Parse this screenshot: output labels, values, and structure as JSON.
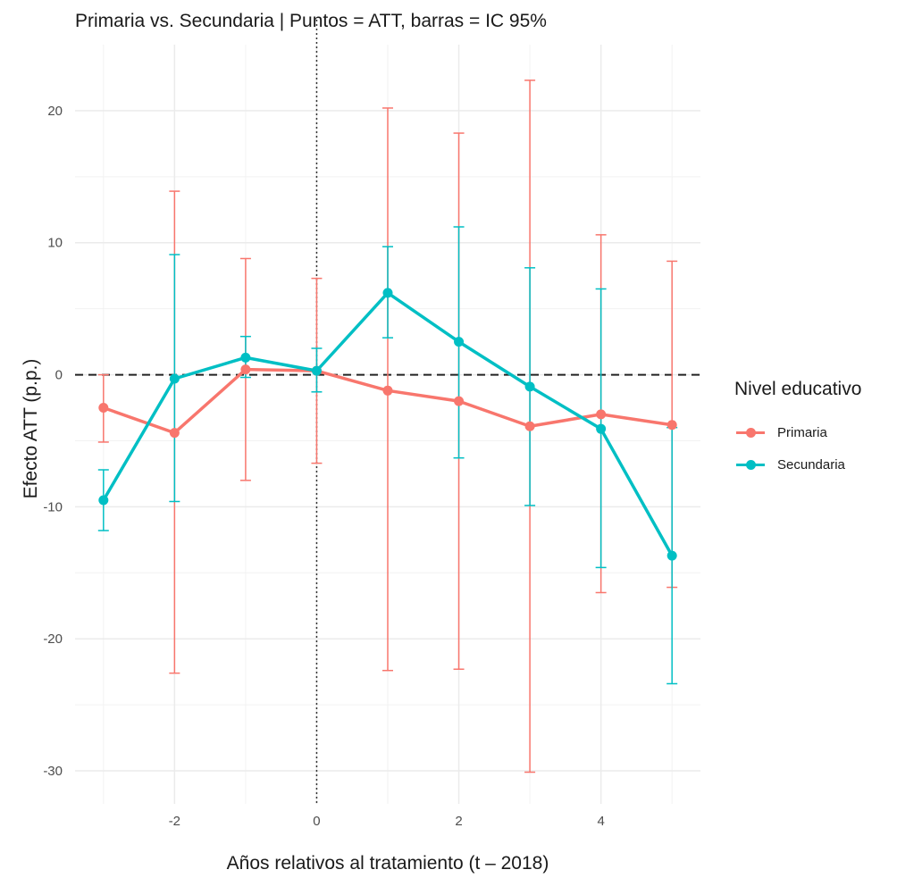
{
  "chart_data": {
    "type": "line",
    "title": "Primaria vs. Secundaria | Puntos = ATT, barras = IC 95%",
    "xlabel": "Años relativos al tratamiento (t – 2018)",
    "ylabel": "Efecto ATT (p.p.)",
    "xlim": [
      -3.4,
      5.4
    ],
    "ylim": [
      -32.5,
      25
    ],
    "x_ticks": [
      -2,
      0,
      2,
      4
    ],
    "x_tick_labels": [
      "-2",
      "0",
      "2",
      "4"
    ],
    "y_ticks": [
      -30,
      -20,
      -10,
      0,
      10,
      20
    ],
    "y_tick_labels": [
      "-30",
      "-20",
      "-10",
      "0",
      "10",
      "20"
    ],
    "reference_lines": {
      "horizontal_dashed_y": 0,
      "vertical_dotted_x": 0
    },
    "grid": true,
    "legend_position": "right",
    "legend": {
      "title": "Nivel educativo",
      "entries": [
        "Primaria",
        "Secundaria"
      ]
    },
    "series": [
      {
        "name": "Primaria",
        "color": "#F8766D",
        "x": [
          -3,
          -2,
          -1,
          0,
          1,
          2,
          3,
          4,
          5
        ],
        "y": [
          -2.5,
          -4.4,
          0.4,
          0.3,
          -1.2,
          -2.0,
          -3.9,
          -3.0,
          -3.8
        ],
        "ci_low": [
          -5.1,
          -22.6,
          -8.0,
          -6.7,
          -22.4,
          -22.3,
          -30.1,
          -16.5,
          -16.1
        ],
        "ci_high": [
          0.0,
          13.9,
          8.8,
          7.3,
          20.2,
          18.3,
          22.3,
          10.6,
          8.6
        ]
      },
      {
        "name": "Secundaria",
        "color": "#00BFC4",
        "x": [
          -3,
          -2,
          -1,
          0,
          1,
          2,
          3,
          4,
          5
        ],
        "y": [
          -9.5,
          -0.3,
          1.3,
          0.3,
          6.2,
          2.5,
          -0.9,
          -4.1,
          -13.7
        ],
        "ci_low": [
          -11.8,
          -9.6,
          -0.2,
          -1.3,
          2.8,
          -6.3,
          -9.9,
          -14.6,
          -23.4
        ],
        "ci_high": [
          -7.2,
          9.1,
          2.9,
          2.0,
          9.7,
          11.2,
          8.1,
          6.5,
          -4.0
        ]
      }
    ]
  }
}
